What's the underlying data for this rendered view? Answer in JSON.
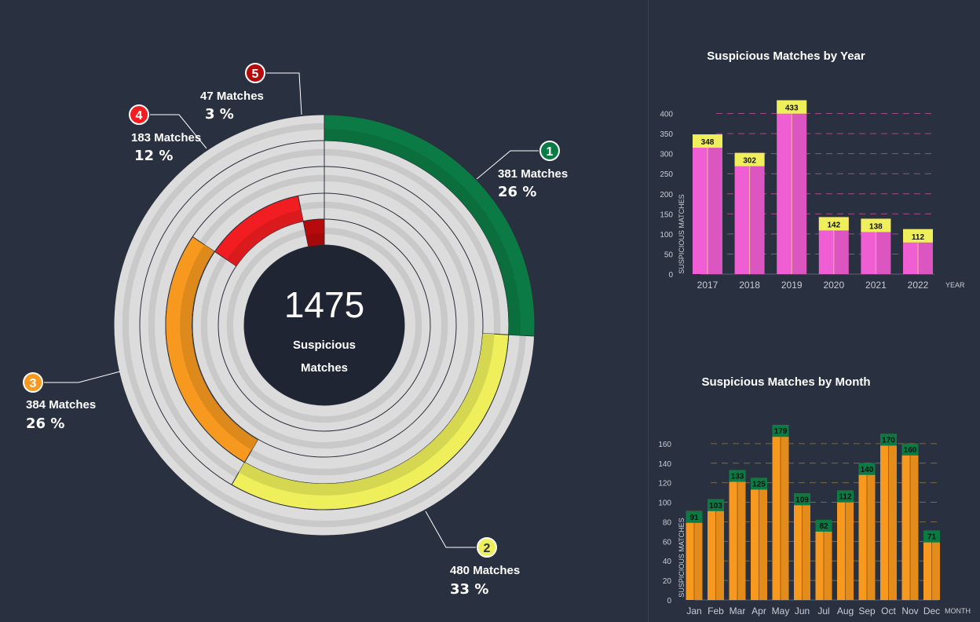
{
  "donut": {
    "total": "1475",
    "center_line1": "Suspicious",
    "center_line2": "Matches",
    "rings": [
      {
        "rank": "1",
        "label": "381 Matches",
        "percent": "26 %",
        "value": 381,
        "color": "#0b7a44",
        "badge_color": "#0b7a44",
        "badge_text_color": "#ffffff"
      },
      {
        "rank": "2",
        "label": "480 Matches",
        "percent": "33 %",
        "value": 480,
        "color": "#eeef5a",
        "badge_color": "#eeef5a",
        "badge_text_color": "#293140"
      },
      {
        "rank": "3",
        "label": "384 Matches",
        "percent": "26 %",
        "value": 384,
        "color": "#f7981f",
        "badge_color": "#f7981f",
        "badge_text_color": "#ffffff"
      },
      {
        "rank": "4",
        "label": "183 Matches",
        "percent": "12 %",
        "value": 183,
        "color": "#f21d20",
        "badge_color": "#f21d20",
        "badge_text_color": "#ffffff"
      },
      {
        "rank": "5",
        "label": "47 Matches",
        "percent": "3 %",
        "value": 47,
        "color": "#b70b0b",
        "badge_color": "#b70b0b",
        "badge_text_color": "#ffffff"
      }
    ]
  },
  "chart_data": [
    {
      "type": "bar",
      "title": "Suspicious Matches by Year",
      "xlabel": "YEAR",
      "ylabel": "SUSPICIOUS MATCHES",
      "categories": [
        "2017",
        "2018",
        "2019",
        "2020",
        "2021",
        "2022"
      ],
      "values": [
        348,
        302,
        433,
        142,
        138,
        112
      ],
      "yticks": [
        0,
        50,
        100,
        150,
        200,
        250,
        300,
        350,
        400
      ],
      "ylim": [
        0,
        450
      ],
      "bar_color": "#ef5ed2",
      "cap_color": "#eeef5a",
      "grid": "dashed"
    },
    {
      "type": "bar",
      "title": "Suspicious Matches by Month",
      "xlabel": "MONTH",
      "ylabel": "SUSPICIOUS MATCHES",
      "categories": [
        "Jan",
        "Feb",
        "Mar",
        "Apr",
        "May",
        "Jun",
        "Jul",
        "Aug",
        "Sep",
        "Oct",
        "Nov",
        "Dec"
      ],
      "values": [
        91,
        103,
        133,
        125,
        179,
        109,
        82,
        112,
        140,
        170,
        160,
        71
      ],
      "yticks": [
        0,
        20,
        40,
        60,
        80,
        100,
        120,
        140,
        160
      ],
      "ylim": [
        0,
        180
      ],
      "bar_color": "#f7981f",
      "cap_color": "#0b7a44",
      "grid": "dashed"
    }
  ]
}
